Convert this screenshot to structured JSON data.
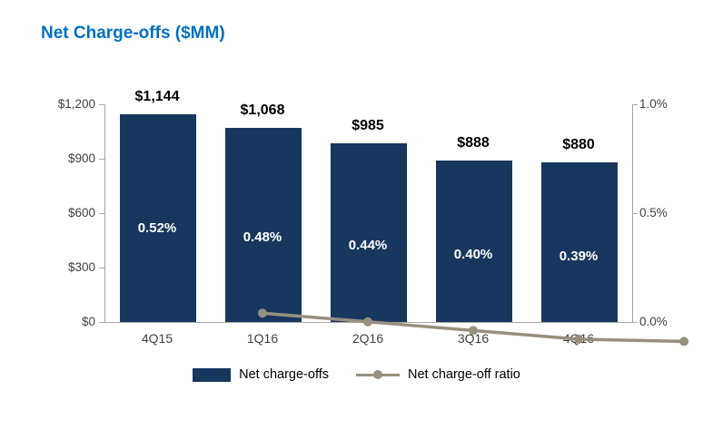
{
  "title": "Net Charge-offs ($MM)",
  "colors": {
    "title": "#0070C0",
    "bar": "#17375E",
    "line": "#97907F",
    "axis": "#A6A6A6",
    "bar_label": "#000000",
    "ratio_label": "#FFFFFF"
  },
  "chart_data": {
    "type": "bar",
    "title": "Net Charge-offs ($MM)",
    "categories": [
      "4Q15",
      "1Q16",
      "2Q16",
      "3Q16",
      "4Q16"
    ],
    "series": [
      {
        "name": "Net charge-offs",
        "type": "bar",
        "axis": "left",
        "values": [
          1144,
          1068,
          985,
          888,
          880
        ],
        "labels": [
          "$1,144",
          "$1,068",
          "$985",
          "$888",
          "$880"
        ]
      },
      {
        "name": "Net charge-off ratio",
        "type": "line",
        "axis": "right",
        "values": [
          0.52,
          0.48,
          0.44,
          0.4,
          0.39
        ],
        "labels": [
          "0.52%",
          "0.48%",
          "0.44%",
          "0.40%",
          "0.39%"
        ]
      }
    ],
    "left_axis": {
      "min": 0,
      "max": 1200,
      "tick_labels": [
        "$0",
        "$300",
        "$600",
        "$900",
        "$1,200"
      ]
    },
    "right_axis": {
      "min": 0.0,
      "max": 1.0,
      "tick_labels": [
        "0.0%",
        "0.5%",
        "1.0%"
      ]
    },
    "legend_position": "bottom",
    "grid": false
  }
}
